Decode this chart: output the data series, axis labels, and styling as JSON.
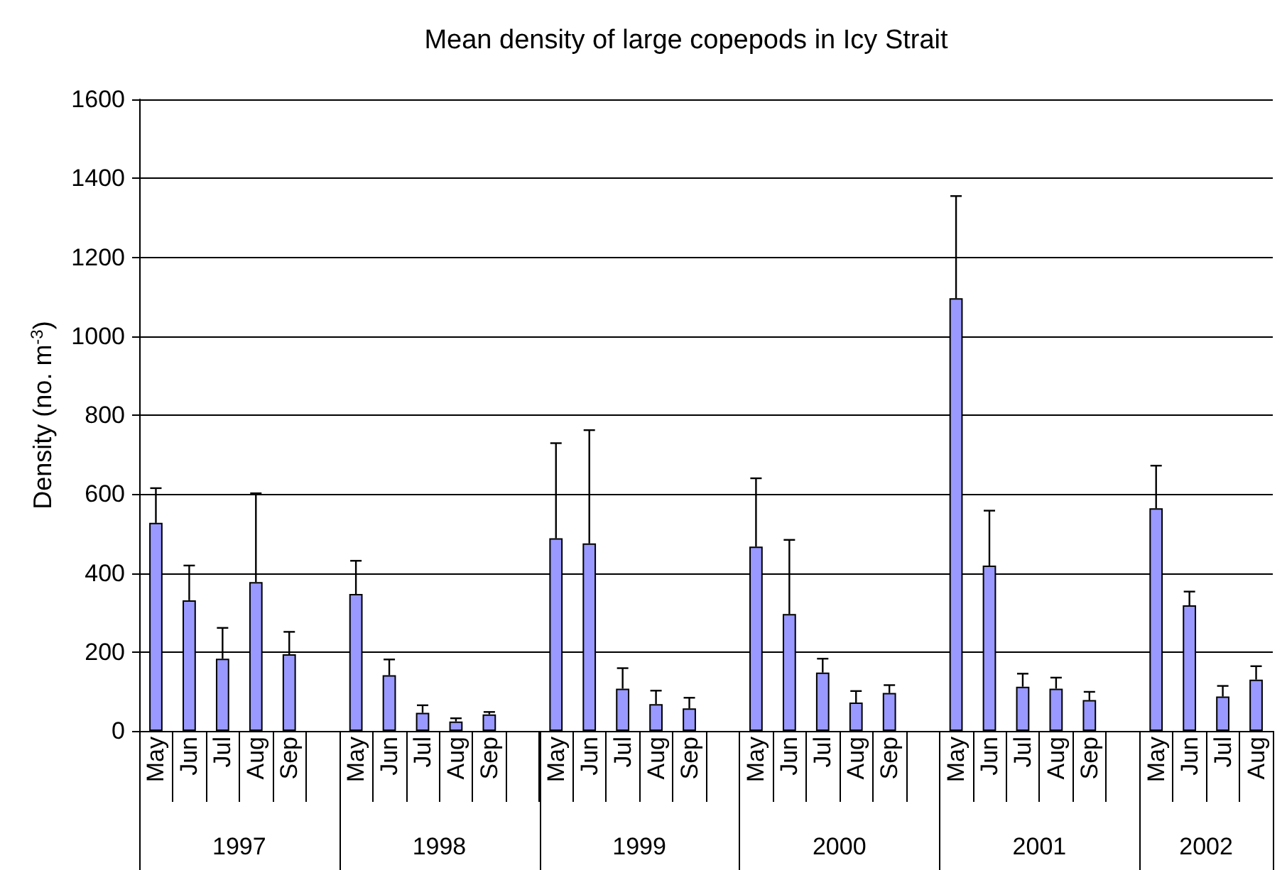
{
  "chart_data": {
    "type": "bar",
    "title": "Mean density of large copepods in Icy Strait",
    "ylabel": "Density (no. m$^{-3}$)",
    "categories": [
      "May",
      "Jun",
      "Jul",
      "Aug",
      "Sep",
      null,
      "May",
      "Jun",
      "Jul",
      "Aug",
      "Sep",
      null,
      "May",
      "Jun",
      "Jul",
      "Aug",
      "Sep",
      null,
      "May",
      "Jun",
      "Jul",
      "Aug",
      "Sep",
      null,
      "May",
      "Jun",
      "Jul",
      "Aug",
      "Sep",
      null,
      "May",
      "Jun",
      "Jul",
      "Aug"
    ],
    "values": [
      527,
      331,
      183,
      377,
      194,
      null,
      347,
      141,
      46,
      24,
      42,
      null,
      488,
      475,
      107,
      68,
      57,
      null,
      467,
      296,
      148,
      72,
      96,
      null,
      1096,
      419,
      112,
      107,
      78,
      null,
      564,
      318,
      87,
      130
    ],
    "errors": [
      [
        527,
        615
      ],
      [
        331,
        419
      ],
      [
        183,
        261
      ],
      [
        377,
        602
      ],
      [
        194,
        251
      ],
      null,
      [
        347,
        431
      ],
      [
        141,
        181
      ],
      [
        46,
        65
      ],
      [
        24,
        32
      ],
      [
        42,
        48
      ],
      null,
      [
        488,
        729
      ],
      [
        475,
        762
      ],
      [
        107,
        159
      ],
      [
        68,
        102
      ],
      [
        57,
        84
      ],
      null,
      [
        467,
        640
      ],
      [
        296,
        484
      ],
      [
        148,
        183
      ],
      [
        72,
        101
      ],
      [
        96,
        116
      ],
      null,
      [
        1096,
        1355
      ],
      [
        419,
        558
      ],
      [
        112,
        145
      ],
      [
        107,
        135
      ],
      [
        78,
        99
      ],
      null,
      [
        564,
        672
      ],
      [
        318,
        353
      ],
      [
        87,
        114
      ],
      [
        130,
        164
      ]
    ],
    "color": "#9999ff",
    "annotations": [
      "1997",
      "1998",
      "1999",
      "2000",
      "2001",
      "2002"
    ],
    "ylim": [
      0,
      1600
    ],
    "yticks": [
      0,
      200,
      400,
      600,
      800,
      1000,
      1200,
      1400,
      1600
    ],
    "grid": "y"
  }
}
